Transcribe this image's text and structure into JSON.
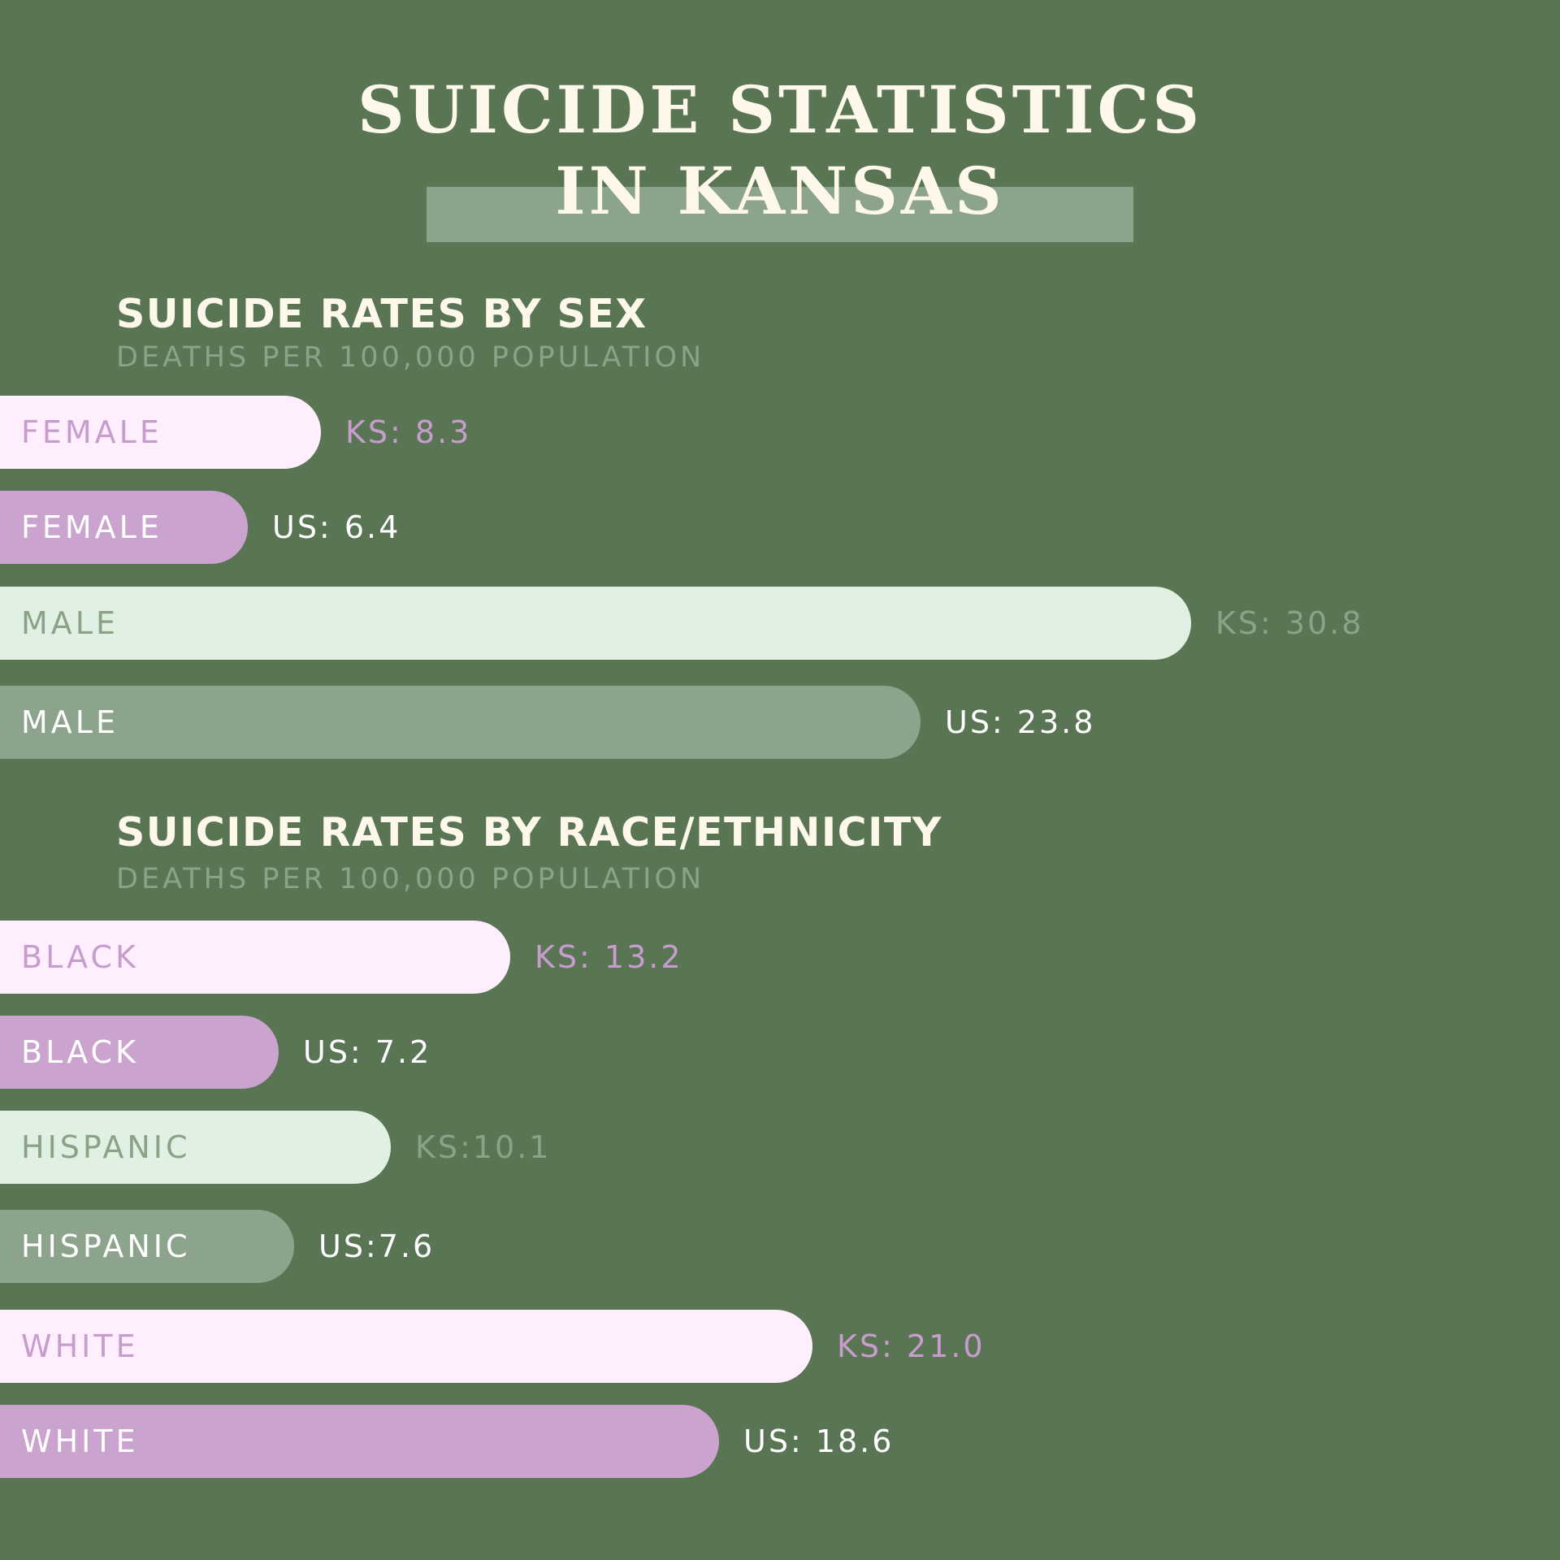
{
  "colors": {
    "background": "#5a7554",
    "title_text": "#fdf8ea",
    "title_highlight": "#8ca38c",
    "section_title": "#fdf8ea",
    "section_subtitle": "#8aa287",
    "ks_light_purple_bar": "#feeefe",
    "us_purple_bar": "#caa3cf",
    "ks_light_green_bar": "#e0f0e2",
    "us_green_bar": "#8ca38c",
    "purple_text": "#c79dce",
    "white_text": "#ffffff",
    "grey_green_text": "#8aa287"
  },
  "title": {
    "line1": "SUICIDE STATISTICS",
    "line2": "IN KANSAS"
  },
  "sections": [
    {
      "title": "SUICIDE RATES BY SEX",
      "subtitle": "DEATHS PER 100,000 POPULATION"
    },
    {
      "title": "SUICIDE RATES BY RACE/ETHNICITY",
      "subtitle": "DEATHS PER 100,000 POPULATION"
    }
  ],
  "chart_data": [
    {
      "type": "bar",
      "orientation": "horizontal",
      "title": "SUICIDE RATES BY SEX",
      "subtitle": "DEATHS PER 100,000 POPULATION",
      "bars": [
        {
          "label": "FEMALE",
          "value": 8.3,
          "value_label": "KS: 8.3",
          "bar_color": "#feeefe",
          "label_color": "#c79dce",
          "value_color": "#c79dce"
        },
        {
          "label": "FEMALE",
          "value": 6.4,
          "value_label": "US: 6.4",
          "bar_color": "#caa3cf",
          "label_color": "#ffffff",
          "value_color": "#ffffff"
        },
        {
          "label": "MALE",
          "value": 30.8,
          "value_label": "KS: 30.8",
          "bar_color": "#e0f0e2",
          "label_color": "#8aa287",
          "value_color": "#8aa287"
        },
        {
          "label": "MALE",
          "value": 23.8,
          "value_label": "US: 23.8",
          "bar_color": "#8ca38c",
          "label_color": "#ffffff",
          "value_color": "#ffffff"
        }
      ]
    },
    {
      "type": "bar",
      "orientation": "horizontal",
      "title": "SUICIDE RATES BY RACE/ETHNICITY",
      "subtitle": "DEATHS PER 100,000 POPULATION",
      "bars": [
        {
          "label": "BLACK",
          "value": 13.2,
          "value_label": "KS: 13.2",
          "bar_color": "#feeefe",
          "label_color": "#c79dce",
          "value_color": "#c79dce"
        },
        {
          "label": "BLACK",
          "value": 7.2,
          "value_label": "US: 7.2",
          "bar_color": "#caa3cf",
          "label_color": "#ffffff",
          "value_color": "#ffffff"
        },
        {
          "label": "HISPANIC",
          "value": 10.1,
          "value_label": "KS:10.1",
          "bar_color": "#e0f0e2",
          "label_color": "#8aa287",
          "value_color": "#8aa287"
        },
        {
          "label": "HISPANIC",
          "value": 7.6,
          "value_label": "US:7.6",
          "bar_color": "#8ca38c",
          "label_color": "#ffffff",
          "value_color": "#ffffff"
        },
        {
          "label": "WHITE",
          "value": 21.0,
          "value_label": "KS: 21.0",
          "bar_color": "#feeefe",
          "label_color": "#c79dce",
          "value_color": "#c79dce"
        },
        {
          "label": "WHITE",
          "value": 18.6,
          "value_label": "US: 18.6",
          "bar_color": "#caa3cf",
          "label_color": "#ffffff",
          "value_color": "#ffffff"
        }
      ]
    }
  ]
}
